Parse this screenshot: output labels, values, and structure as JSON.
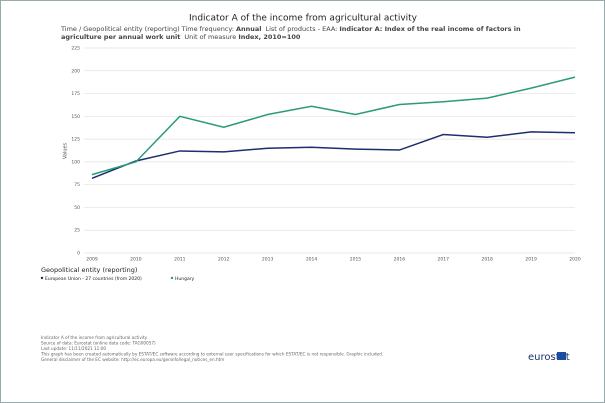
{
  "chart_data": {
    "type": "line",
    "title": "Indicator A of the income from agricultural activity",
    "subtitle_parts": [
      {
        "label": "Time / Geopolitical entity (reporting)"
      },
      {
        "label": "Time frequency:",
        "value": "Annual"
      },
      {
        "label": "List of products - EAA:",
        "value": "Indicator A: Index of the real income of factors in agriculture per annual work unit"
      },
      {
        "label": "Unit of measure",
        "value": "Index, 2010=100"
      }
    ],
    "y_label": "Values",
    "x": [
      2009,
      2010,
      2011,
      2012,
      2013,
      2014,
      2015,
      2016,
      2017,
      2018,
      2019,
      2020
    ],
    "xlim": [
      2009,
      2020
    ],
    "xticks": [
      2009,
      2010,
      2011,
      2012,
      2013,
      2014,
      2015,
      2016,
      2017,
      2018,
      2019,
      2020
    ],
    "ylim": [
      0,
      225
    ],
    "yticks": [
      0,
      25,
      50,
      75,
      100,
      125,
      150,
      175,
      200,
      225
    ],
    "grid": true,
    "legend_title": "Geopolitical entity (reporting)",
    "series": [
      {
        "name": "European Union - 27 countries (from 2020)",
        "color": "#1b2f6e",
        "values": [
          82,
          101,
          112,
          111,
          115,
          116,
          114,
          113,
          130,
          127,
          133,
          132
        ]
      },
      {
        "name": "Hungary",
        "color": "#2a9a7c",
        "values": [
          86,
          100,
          150,
          138,
          152,
          161,
          152,
          163,
          166,
          170,
          181,
          193
        ]
      }
    ],
    "footer": [
      "Indicator A of the income from agricultural activity",
      "Source of data: Eurostat (online data code: TAG00057)",
      "Last update: 11/11/2021 11:00",
      "This graph has been created automatically by ESTAT/EC software according to external user specifications for which ESTAT/EC is not responsible. Graphic included.",
      "General disclaimer of the EC website: http://ec.europa.eu/geninfo/legal_notices_en.htm"
    ],
    "logo": "eurostat"
  }
}
